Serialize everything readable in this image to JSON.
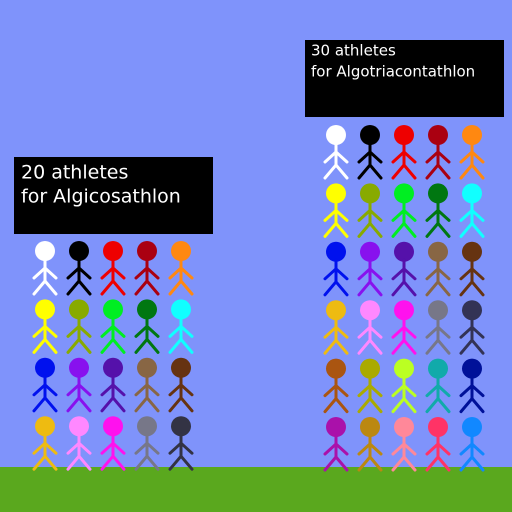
{
  "groups": [
    {
      "lines": [
        "20 athletes",
        "for Algicosathlon"
      ],
      "colors": [
        [
          "#ffffff",
          "#000000",
          "#ee0000",
          "#aa0011",
          "#ff8811"
        ],
        [
          "#ffff00",
          "#88aa00",
          "#00ee22",
          "#007711",
          "#11ffff"
        ],
        [
          "#0011ee",
          "#8811ee",
          "#5511aa",
          "#886644",
          "#663311"
        ],
        [
          "#eebb11",
          "#ff88ff",
          "#ff11ee",
          "#777788",
          "#333344"
        ]
      ]
    },
    {
      "lines": [
        "30 athletes",
        "for Algotriacontathlon"
      ],
      "colors": [
        [
          "#ffffff",
          "#000000",
          "#ee0000",
          "#aa0011",
          "#ff8811"
        ],
        [
          "#ffff00",
          "#88aa00",
          "#00ee22",
          "#007711",
          "#11ffff"
        ],
        [
          "#0011ee",
          "#8811ee",
          "#5511aa",
          "#886644",
          "#663311"
        ],
        [
          "#eebb11",
          "#ff88ff",
          "#ff11ee",
          "#777788",
          "#333355"
        ],
        [
          "#aa5511",
          "#aaaa00",
          "#bbff22",
          "#11aaaa",
          "#001199"
        ],
        [
          "#aa11aa",
          "#bb8811",
          "#ff8899",
          "#ff3366",
          "#1188ff"
        ]
      ]
    }
  ]
}
